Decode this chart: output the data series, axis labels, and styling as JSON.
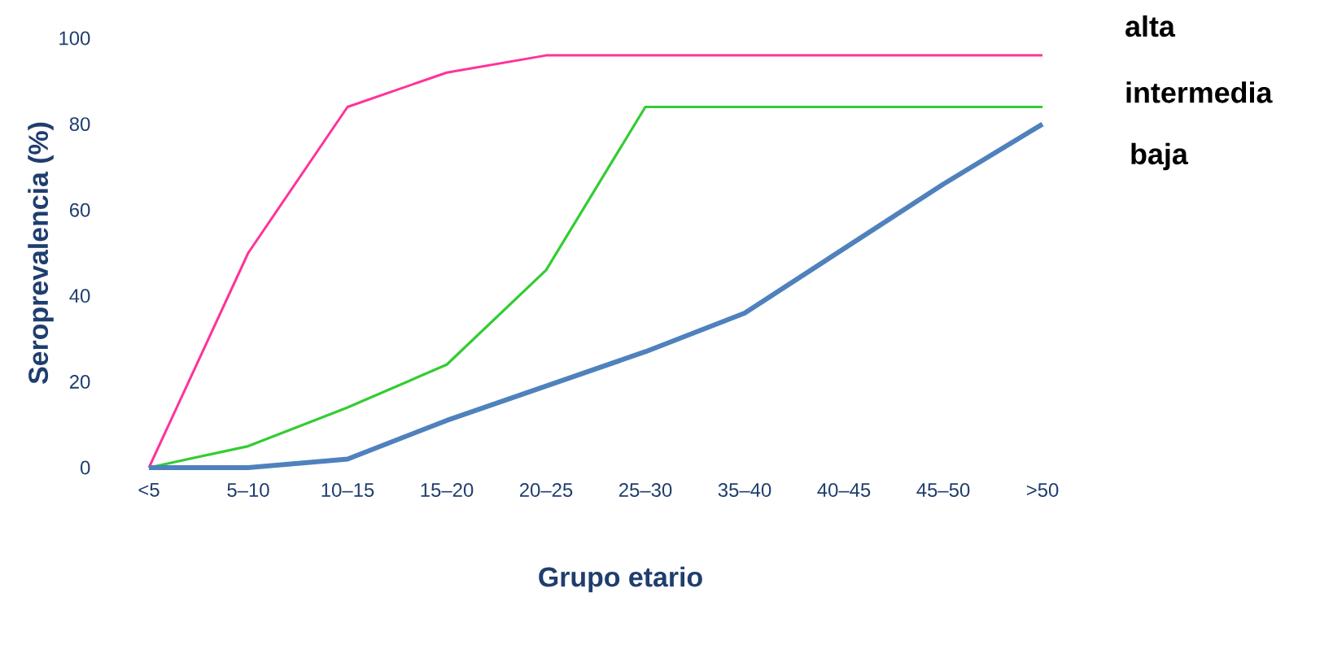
{
  "chart_data": {
    "type": "line",
    "xlabel": "Grupo etario",
    "ylabel": "Seroprevalencia (%)",
    "categories": [
      "<5",
      "5–10",
      "10–15",
      "15–20",
      "20–25",
      "25–30",
      "35–40",
      "40–45",
      "45–50",
      ">50"
    ],
    "ylim": [
      0,
      100
    ],
    "yticks": [
      0,
      20,
      40,
      60,
      80,
      100
    ],
    "grid": false,
    "series": [
      {
        "name": "alta",
        "color": "#ff3399",
        "values": [
          0,
          50,
          84,
          92,
          96,
          96,
          96,
          96,
          96,
          96
        ]
      },
      {
        "name": "intermedia",
        "color": "#33cc33",
        "values": [
          0,
          5,
          14,
          24,
          46,
          84,
          84,
          84,
          84,
          84
        ]
      },
      {
        "name": "baja",
        "color": "#4f81bd",
        "values": [
          0,
          0,
          2,
          11,
          19,
          27,
          36,
          51,
          66,
          80
        ]
      }
    ]
  }
}
